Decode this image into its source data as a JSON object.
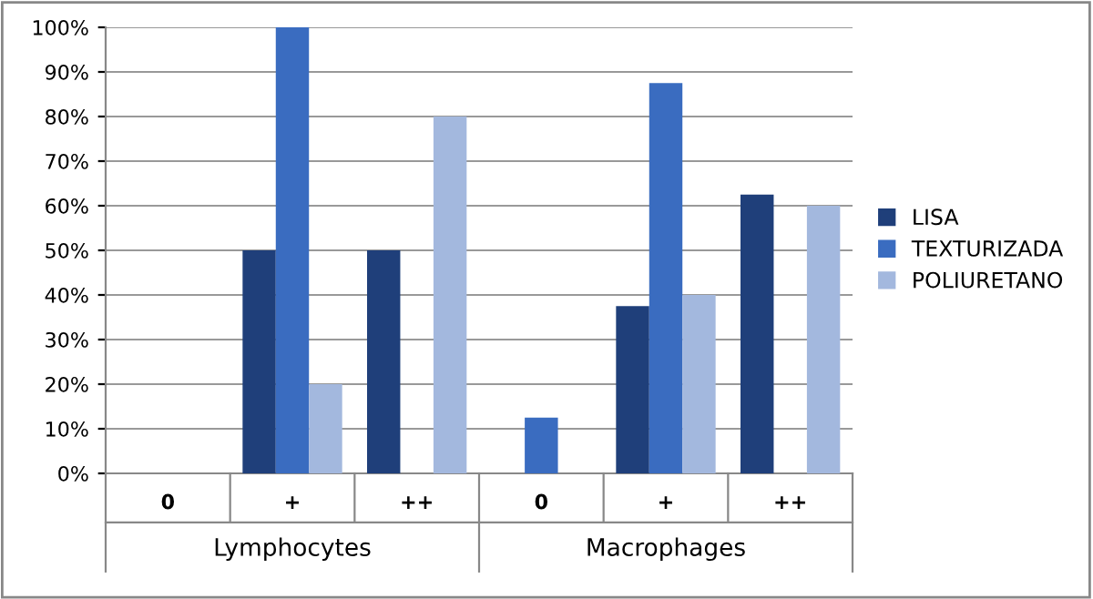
{
  "chart_data": {
    "type": "bar",
    "categories": [
      "0",
      "+",
      "++",
      "0",
      "+",
      "++"
    ],
    "series": [
      {
        "name": "LISA",
        "color": "#1f3f7a",
        "values": [
          0,
          50,
          50,
          0,
          37.5,
          62.5
        ]
      },
      {
        "name": "TEXTURIZADA",
        "color": "#3a6cc0",
        "values": [
          0,
          100,
          0,
          12.5,
          87.5,
          0
        ]
      },
      {
        "name": "POLIURETANO",
        "color": "#a3b8de",
        "values": [
          0,
          20,
          80,
          0,
          40,
          60
        ]
      }
    ],
    "annotations": [
      "Lymphocytes",
      "Macrophages"
    ],
    "ylim": [
      0,
      100
    ],
    "yticks": [
      {
        "value": 0,
        "label": "0%"
      },
      {
        "value": 10,
        "label": "10%"
      },
      {
        "value": 20,
        "label": "20%"
      },
      {
        "value": 30,
        "label": "30%"
      },
      {
        "value": 40,
        "label": "40%"
      },
      {
        "value": 50,
        "label": "50%"
      },
      {
        "value": 60,
        "label": "60%"
      },
      {
        "value": 70,
        "label": "70%"
      },
      {
        "value": 80,
        "label": "80%"
      },
      {
        "value": 90,
        "label": "90%"
      },
      {
        "value": 100,
        "label": "100%"
      }
    ],
    "grid": "y",
    "legend": "right"
  }
}
